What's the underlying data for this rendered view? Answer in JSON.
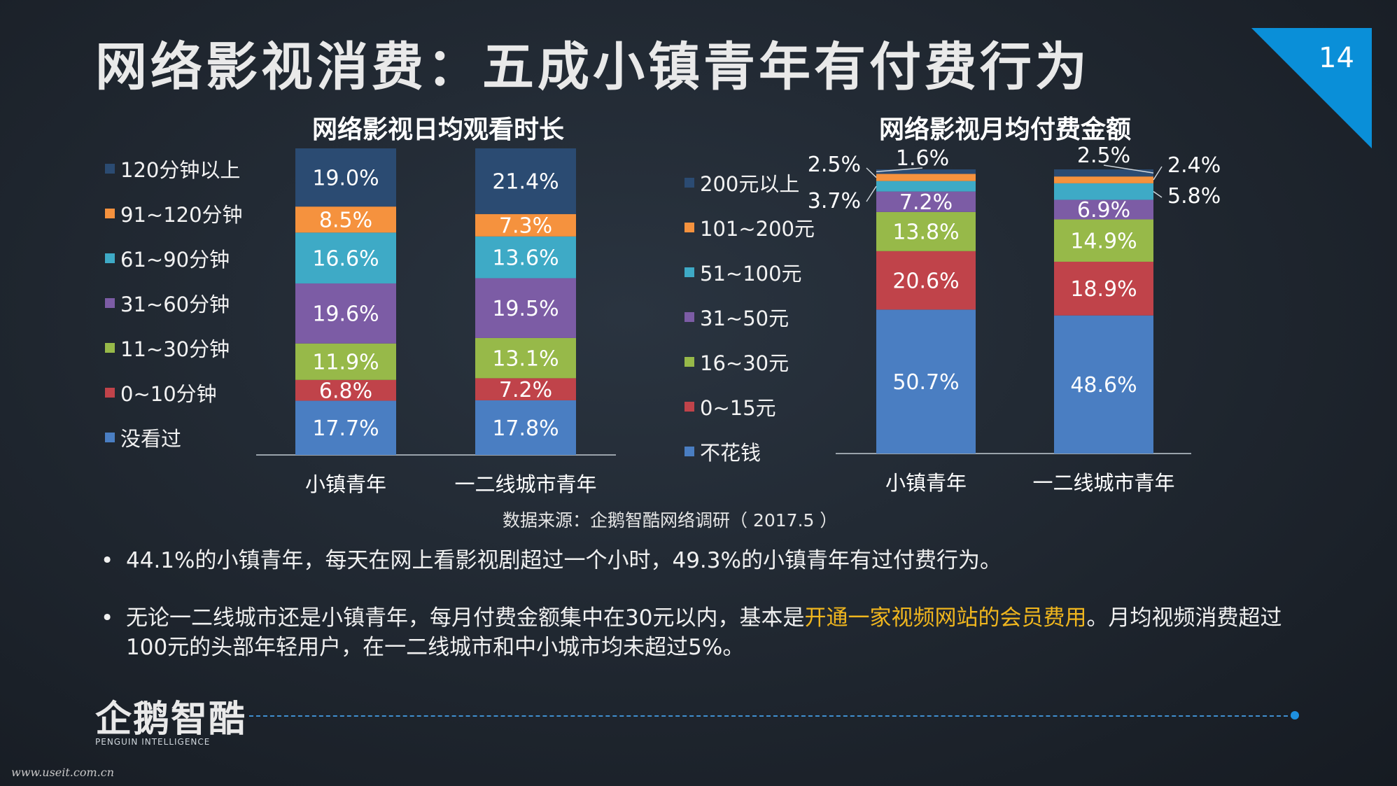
{
  "slide": {
    "title": "网络影视消费：五成小镇青年有付费行为",
    "page_number": "14",
    "source": "数据来源：企鹅智酷网络调研（ 2017.5 ）",
    "bullets": [
      {
        "text": "44.1%的小镇青年，每天在网上看影视剧超过一个小时，49.3%的小镇青年有过付费行为。"
      },
      {
        "before": "无论一二线城市还是小镇青年，每月付费金额集中在30元以内，基本是",
        "highlight": "开通一家视频网站的会员费用",
        "after": "。月均视频消费超过100元的头部年轻用户，在一二线城市和中小城市均未超过5%。"
      }
    ],
    "logo": {
      "name": "企鹅智酷",
      "subtitle": "PENGUIN INTELLIGENCE"
    },
    "watermark": "www.useit.com.cn",
    "colors": {
      "accent": "#0a8fd8",
      "highlight": "#f0b61e"
    }
  },
  "chart_data": [
    {
      "type": "bar",
      "stacked": true,
      "title": "网络影视日均观看时长",
      "categories": [
        "小镇青年",
        "一二线城市青年"
      ],
      "legend_position": "left",
      "series": [
        {
          "name": "没看过",
          "color": "#4a7ec2",
          "values": [
            17.7,
            17.8
          ],
          "labels": [
            "17.7%",
            "17.8%"
          ]
        },
        {
          "name": "0~10分钟",
          "color": "#c0434a",
          "values": [
            6.8,
            7.2
          ],
          "labels": [
            "6.8%",
            "7.2%"
          ]
        },
        {
          "name": "11~30分钟",
          "color": "#97b949",
          "values": [
            11.9,
            13.1
          ],
          "labels": [
            "11.9%",
            "13.1%"
          ]
        },
        {
          "name": "31~60分钟",
          "color": "#7c5ca5",
          "values": [
            19.6,
            19.5
          ],
          "labels": [
            "19.6%",
            "19.5%"
          ]
        },
        {
          "name": "61~90分钟",
          "color": "#3eaac6",
          "values": [
            16.6,
            13.6
          ],
          "labels": [
            "16.6%",
            "13.6%"
          ]
        },
        {
          "name": "91~120分钟",
          "color": "#f5923e",
          "values": [
            8.5,
            7.3
          ],
          "labels": [
            "8.5%",
            "7.3%"
          ]
        },
        {
          "name": "120分钟以上",
          "color": "#2b4b72",
          "values": [
            19.0,
            21.4
          ],
          "labels": [
            "19.0%",
            "21.4%"
          ]
        }
      ]
    },
    {
      "type": "bar",
      "stacked": true,
      "title": "网络影视月均付费金额",
      "categories": [
        "小镇青年",
        "一二线城市青年"
      ],
      "legend_position": "left",
      "series": [
        {
          "name": "不花钱",
          "color": "#4a7ec2",
          "values": [
            50.7,
            48.6
          ],
          "labels": [
            "50.7%",
            "48.6%"
          ]
        },
        {
          "name": "0~15元",
          "color": "#c0434a",
          "values": [
            20.6,
            18.9
          ],
          "labels": [
            "20.6%",
            "18.9%"
          ]
        },
        {
          "name": "16~30元",
          "color": "#97b949",
          "values": [
            13.8,
            14.9
          ],
          "labels": [
            "13.8%",
            "14.9%"
          ]
        },
        {
          "name": "31~50元",
          "color": "#7c5ca5",
          "values": [
            7.2,
            6.9
          ],
          "labels": [
            "7.2%",
            "6.9%"
          ]
        },
        {
          "name": "51~100元",
          "color": "#3eaac6",
          "values": [
            3.7,
            5.8
          ],
          "labels": [
            "3.7%",
            "5.8%"
          ]
        },
        {
          "name": "101~200元",
          "color": "#f5923e",
          "values": [
            2.5,
            2.4
          ],
          "labels": [
            "2.5%",
            "2.4%"
          ]
        },
        {
          "name": "200元以上",
          "color": "#2b4b72",
          "values": [
            1.6,
            2.5
          ],
          "labels": [
            "1.6%",
            "2.5%"
          ]
        }
      ]
    }
  ]
}
